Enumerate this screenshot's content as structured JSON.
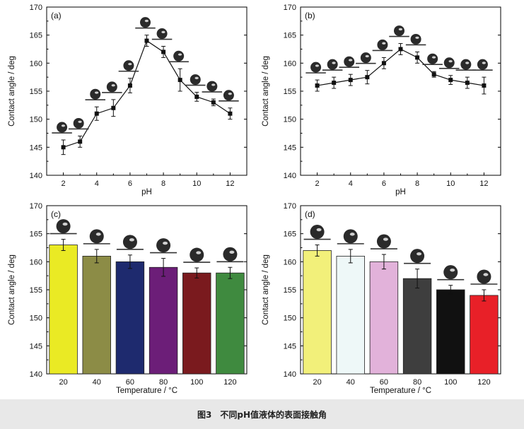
{
  "caption": "图3　不同pH值液体的表面接触角",
  "chart_data": [
    {
      "id": "a",
      "type": "line",
      "panel_label": "(a)",
      "xlabel": "pH",
      "ylabel": "Contact angle / deg",
      "xlim": [
        1,
        13
      ],
      "ylim": [
        140,
        170
      ],
      "xticks": [
        2,
        4,
        6,
        8,
        10,
        12
      ],
      "yticks": [
        140,
        145,
        150,
        155,
        160,
        165,
        170
      ],
      "x": [
        2,
        3,
        4,
        5,
        6,
        7,
        8,
        9,
        10,
        11,
        12
      ],
      "values": [
        145,
        146,
        151,
        152,
        156,
        164,
        162,
        157,
        154,
        153,
        151
      ],
      "errors": [
        1.3,
        1.0,
        1.2,
        1.5,
        1.3,
        1.0,
        1.0,
        2.0,
        0.8,
        0.6,
        1.0
      ]
    },
    {
      "id": "b",
      "type": "line",
      "panel_label": "(b)",
      "xlabel": "pH",
      "ylabel": "Contact angle / deg",
      "xlim": [
        1,
        13
      ],
      "ylim": [
        140,
        170
      ],
      "xticks": [
        2,
        4,
        6,
        8,
        10,
        12
      ],
      "yticks": [
        140,
        145,
        150,
        155,
        160,
        165,
        170
      ],
      "x": [
        2,
        3,
        4,
        5,
        6,
        7,
        8,
        9,
        10,
        11,
        12
      ],
      "values": [
        156,
        156.5,
        157,
        157.5,
        160,
        162.5,
        161,
        158,
        157,
        156.5,
        156
      ],
      "errors": [
        1.0,
        1.0,
        1.0,
        1.2,
        1.0,
        1.0,
        1.0,
        0.5,
        0.8,
        1.0,
        1.5
      ]
    },
    {
      "id": "c",
      "type": "bar",
      "panel_label": "(c)",
      "xlabel": "Temperature  / °C",
      "ylabel": "Contact angle / deg",
      "ylim": [
        140,
        170
      ],
      "yticks": [
        140,
        145,
        150,
        155,
        160,
        165,
        170
      ],
      "categories": [
        "20",
        "40",
        "60",
        "80",
        "100",
        "120"
      ],
      "values": [
        163,
        161,
        160,
        159,
        158,
        158
      ],
      "errors": [
        1.0,
        1.2,
        1.2,
        1.6,
        0.9,
        1.0
      ],
      "colors": [
        "#eaea24",
        "#8c8c46",
        "#1e2a6e",
        "#6c1e78",
        "#7a1a1e",
        "#3f8a3f"
      ]
    },
    {
      "id": "d",
      "type": "bar",
      "panel_label": "(d)",
      "xlabel": "Temperature  / °C",
      "ylabel": "Contact angle / deg",
      "ylim": [
        140,
        170
      ],
      "yticks": [
        140,
        145,
        150,
        155,
        160,
        165,
        170
      ],
      "categories": [
        "20",
        "40",
        "60",
        "80",
        "100",
        "120"
      ],
      "values": [
        162,
        161,
        160,
        157,
        155,
        154
      ],
      "errors": [
        1.0,
        1.2,
        1.3,
        1.7,
        0.8,
        1.0
      ],
      "colors": [
        "#f2f07a",
        "#eef8f8",
        "#e2b2da",
        "#3e3e3e",
        "#111111",
        "#e82028"
      ]
    }
  ]
}
